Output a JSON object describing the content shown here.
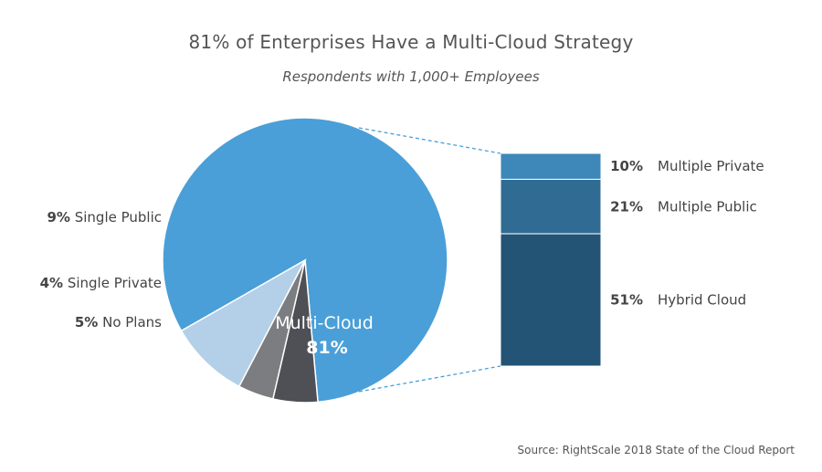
{
  "chart_data": {
    "type": "pie",
    "title": "81% of Enterprises Have a Multi-Cloud Strategy",
    "subtitle": "Respondents with 1,000+ Employees",
    "source": "Source: RightScale 2018 State of the Cloud Report",
    "slices": [
      {
        "label": "Multi-Cloud",
        "value": 81,
        "value_text": "81%",
        "color": "#4a9fd8"
      },
      {
        "label": "Single Public",
        "value": 9,
        "value_text": "9%",
        "color": "#b3d0e8"
      },
      {
        "label": "Single Private",
        "value": 4,
        "value_text": "4%",
        "color": "#7c7d80"
      },
      {
        "label": "No Plans",
        "value": 5,
        "value_text": "5%",
        "color": "#4f5055"
      }
    ],
    "breakdown": {
      "of": "Multi-Cloud",
      "segments": [
        {
          "label": "Multiple Private",
          "value": 10,
          "value_text": "10%",
          "color": "#3d87b9"
        },
        {
          "label": "Multiple Public",
          "value": 21,
          "value_text": "21%",
          "color": "#306b94"
        },
        {
          "label": "Hybrid Cloud",
          "value": 51,
          "value_text": "51%",
          "color": "#235375"
        }
      ]
    },
    "connector_color": "#4a9fd8"
  }
}
